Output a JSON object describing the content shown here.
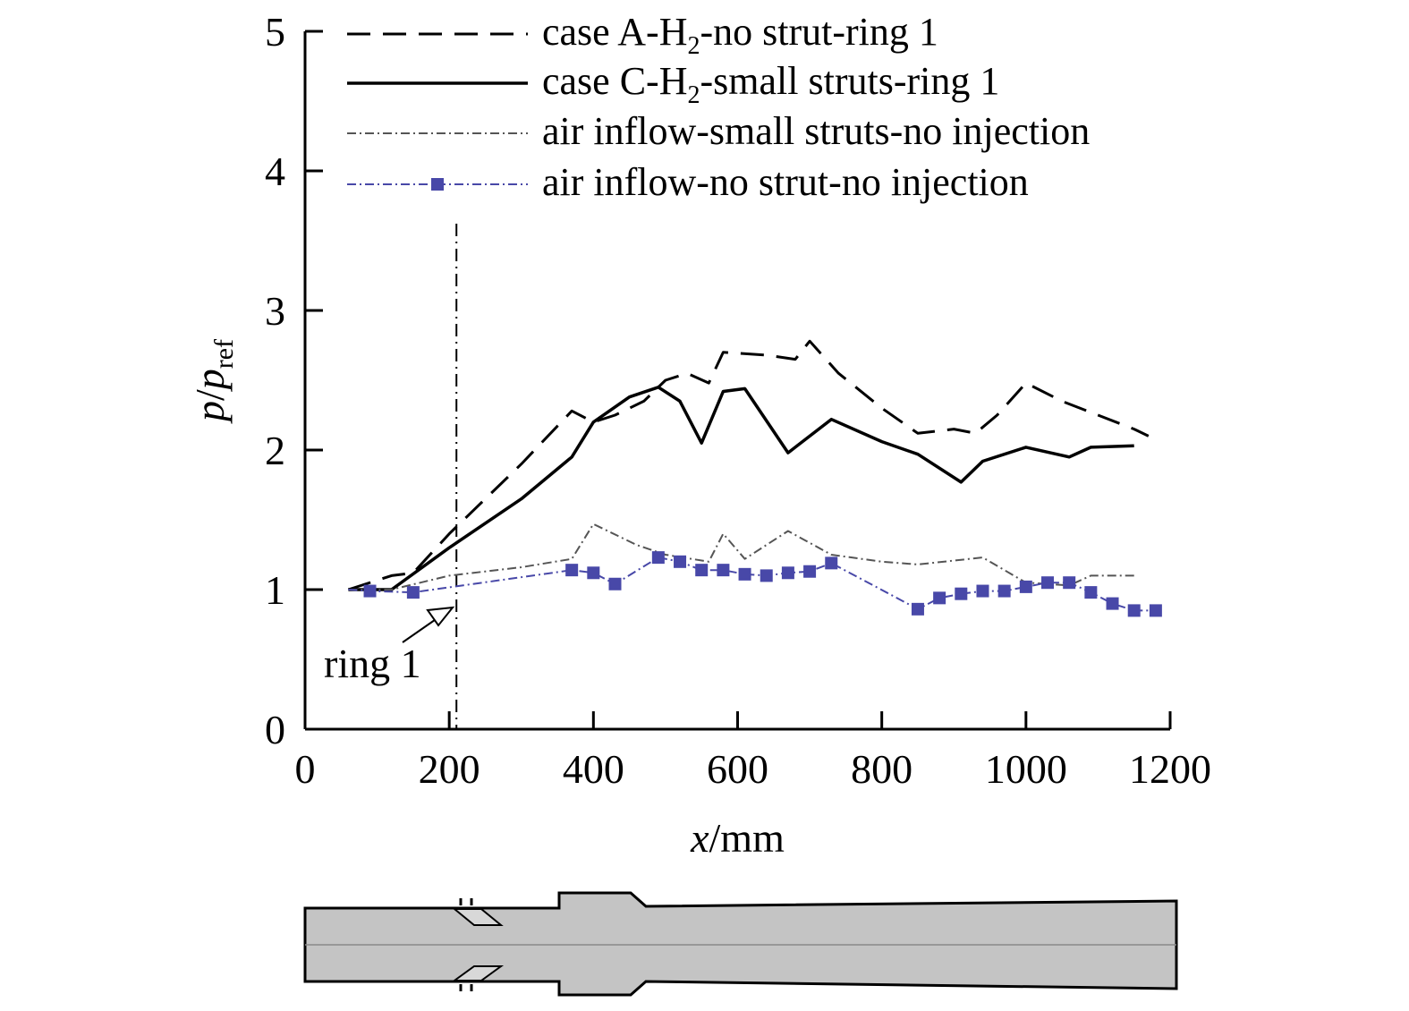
{
  "chart_data": {
    "type": "line",
    "xlabel": {
      "italic": "x",
      "rest": "/mm"
    },
    "ylabel": {
      "p1": "p",
      "slash": "/",
      "p2": "p",
      "sub": "ref"
    },
    "xlim": [
      0,
      1200
    ],
    "ylim": [
      0,
      5
    ],
    "xticks": [
      "0",
      "200",
      "400",
      "600",
      "800",
      "1000",
      "1200"
    ],
    "yticks": [
      "0",
      "1",
      "2",
      "3",
      "4",
      "5"
    ],
    "legend_position": "top",
    "grid": false,
    "series": [
      {
        "legend": {
          "pre": "case A-H",
          "sub": "2",
          "post": "-no strut-ring 1"
        },
        "style": "dashed",
        "color": "#000000",
        "x": [
          60,
          120,
          150,
          200,
          300,
          370,
          400,
          430,
          470,
          500,
          530,
          560,
          580,
          640,
          680,
          700,
          740,
          800,
          850,
          900,
          930,
          960,
          1000,
          1050,
          1100,
          1150,
          1170
        ],
        "y": [
          1.0,
          1.1,
          1.12,
          1.4,
          1.9,
          2.28,
          2.2,
          2.25,
          2.35,
          2.5,
          2.55,
          2.48,
          2.7,
          2.68,
          2.65,
          2.78,
          2.55,
          2.3,
          2.12,
          2.15,
          2.12,
          2.25,
          2.48,
          2.35,
          2.25,
          2.15,
          2.1
        ]
      },
      {
        "legend": {
          "pre": "case C-H",
          "sub": "2",
          "post": "-small struts-ring 1"
        },
        "style": "solid",
        "color": "#000000",
        "x": [
          60,
          120,
          200,
          300,
          370,
          400,
          450,
          490,
          520,
          550,
          580,
          610,
          670,
          730,
          800,
          850,
          910,
          940,
          1000,
          1060,
          1090,
          1150
        ],
        "y": [
          1.0,
          1.0,
          1.3,
          1.65,
          1.95,
          2.2,
          2.38,
          2.45,
          2.35,
          2.05,
          2.42,
          2.44,
          1.98,
          2.22,
          2.06,
          1.97,
          1.77,
          1.92,
          2.02,
          1.95,
          2.02,
          2.03
        ]
      },
      {
        "legend": {
          "pre": "air inflow-small struts-no injection",
          "sub": "",
          "post": ""
        },
        "style": "dashdot",
        "color": "#555555",
        "x": [
          60,
          120,
          200,
          300,
          370,
          400,
          460,
          500,
          560,
          580,
          610,
          670,
          730,
          800,
          850,
          940,
          1000,
          1060,
          1090,
          1150
        ],
        "y": [
          1.0,
          1.0,
          1.1,
          1.16,
          1.22,
          1.47,
          1.32,
          1.25,
          1.2,
          1.4,
          1.22,
          1.42,
          1.25,
          1.2,
          1.18,
          1.23,
          1.05,
          1.03,
          1.1,
          1.1
        ]
      },
      {
        "legend": {
          "pre": "air inflow-no strut-no injection",
          "sub": "",
          "post": ""
        },
        "style": "dashdot-square",
        "color": "#4848a8",
        "x": [
          60,
          90,
          150,
          370,
          400,
          430,
          490,
          520,
          550,
          580,
          610,
          640,
          670,
          700,
          730,
          850,
          880,
          910,
          940,
          970,
          1000,
          1030,
          1060,
          1090,
          1120,
          1150,
          1180
        ],
        "y": [
          1.0,
          0.99,
          0.98,
          1.14,
          1.12,
          1.04,
          1.23,
          1.2,
          1.14,
          1.14,
          1.11,
          1.1,
          1.12,
          1.13,
          1.19,
          0.86,
          0.94,
          0.97,
          0.99,
          0.99,
          1.02,
          1.05,
          1.05,
          0.98,
          0.9,
          0.85,
          0.85
        ]
      }
    ],
    "annotation": {
      "label": "ring 1",
      "x": 210
    }
  }
}
